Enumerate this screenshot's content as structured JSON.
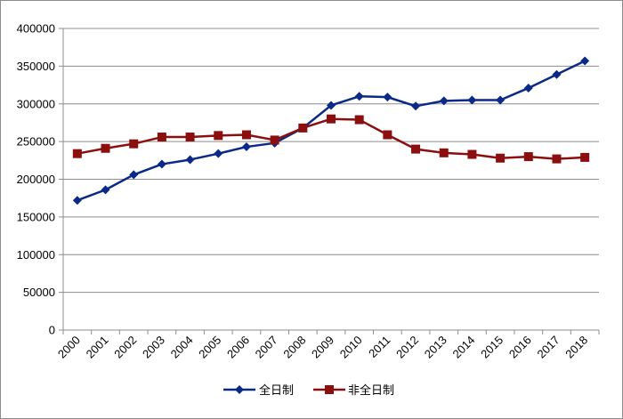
{
  "chart_data": {
    "type": "line",
    "title": "",
    "xlabel": "",
    "ylabel": "",
    "categories": [
      "2000",
      "2001",
      "2002",
      "2003",
      "2004",
      "2005",
      "2006",
      "2007",
      "2008",
      "2009",
      "2010",
      "2011",
      "2012",
      "2013",
      "2014",
      "2015",
      "2016",
      "2017",
      "2018"
    ],
    "ylim": [
      0,
      400000
    ],
    "yticks": [
      "0",
      "50000",
      "100000",
      "150000",
      "200000",
      "250000",
      "300000",
      "350000",
      "400000"
    ],
    "grid": true,
    "legend_position": "bottom",
    "series": [
      {
        "name": "全日制",
        "color": "#0b2a87",
        "marker": "diamond",
        "values": [
          172000,
          186000,
          206000,
          220000,
          226000,
          234000,
          243000,
          248000,
          268000,
          298000,
          310000,
          309000,
          297000,
          304000,
          305000,
          305000,
          321000,
          339000,
          357000
        ]
      },
      {
        "name": "非全日制",
        "color": "#8b0f0f",
        "marker": "square",
        "values": [
          234000,
          241000,
          247000,
          256000,
          256000,
          258000,
          259000,
          252000,
          268000,
          280000,
          279000,
          259000,
          240000,
          235000,
          233000,
          228000,
          230000,
          227000,
          229000
        ]
      }
    ]
  }
}
